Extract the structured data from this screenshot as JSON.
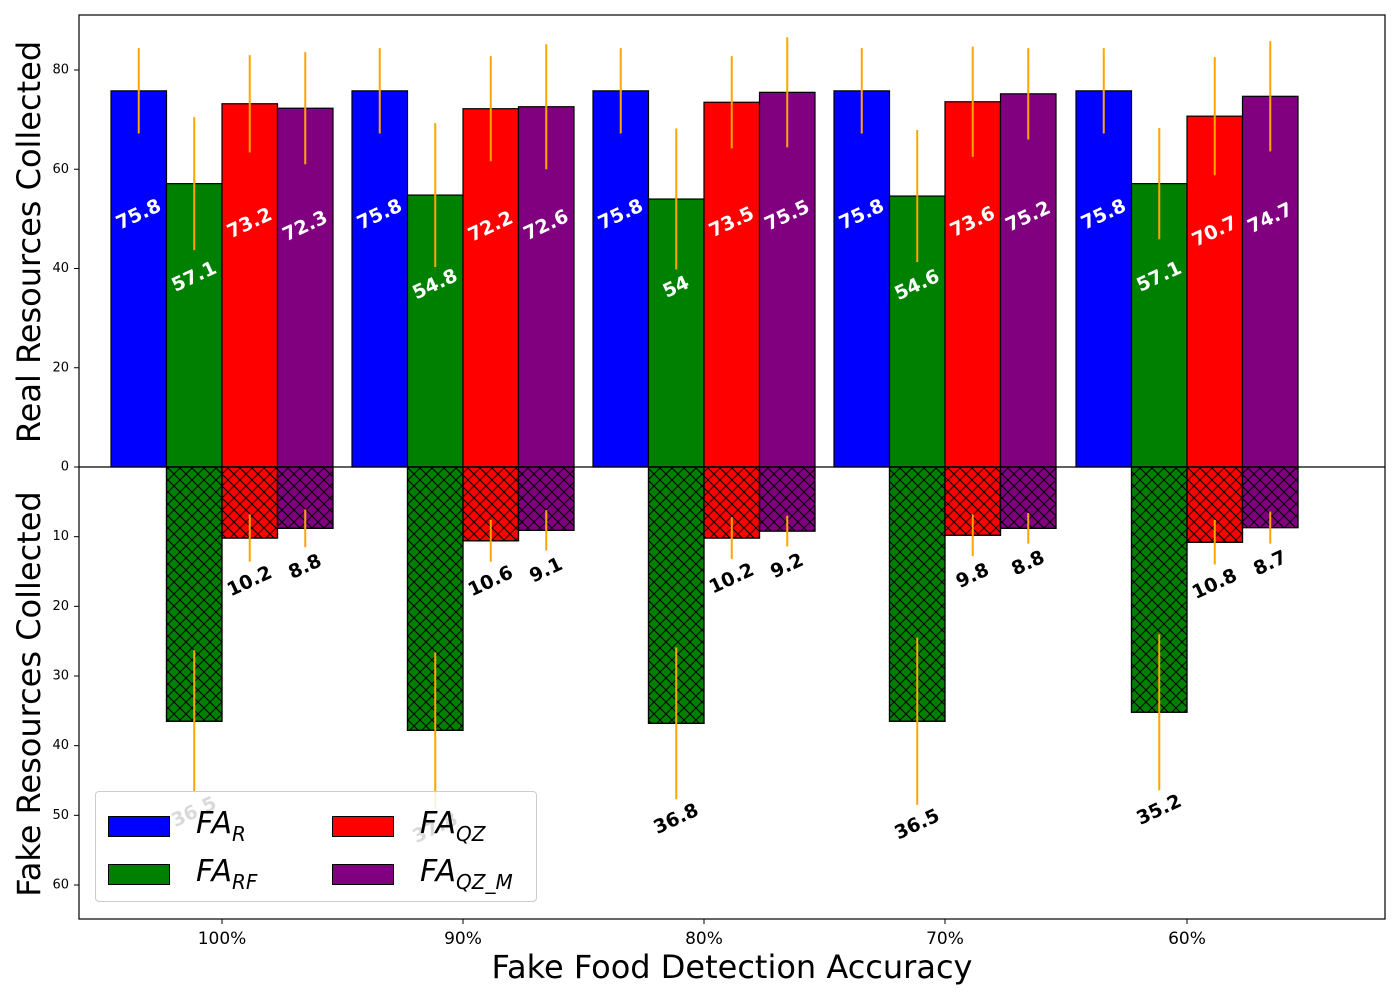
{
  "chart_data": {
    "type": "bar",
    "categories": [
      "100%",
      "90%",
      "80%",
      "70%",
      "60%"
    ],
    "xlabel": "Fake Food Detection Accuracy",
    "ylabel_top": "Real Resources Collected",
    "ylabel_bottom": "Fake Resources Collected",
    "ylim_top": [
      0,
      90
    ],
    "ylim_bottom": [
      0,
      65
    ],
    "yticks_top": [
      0,
      20,
      40,
      60,
      80
    ],
    "yticks_bottom": [
      10,
      20,
      30,
      40,
      50,
      60
    ],
    "legend_position": "lower-left",
    "grid": false,
    "series": [
      {
        "name": "FA",
        "subscript": "R",
        "color": "#0000ff",
        "real": [
          75.8,
          75.8,
          75.8,
          75.8,
          75.8
        ],
        "real_err": [
          8.6,
          8.6,
          8.6,
          8.6,
          8.6
        ],
        "fake": [
          0,
          0,
          0,
          0,
          0
        ],
        "fake_err": [
          0,
          0,
          0,
          0,
          0
        ]
      },
      {
        "name": "FA",
        "subscript": "RF",
        "color": "#008000",
        "real": [
          57.1,
          54.8,
          54,
          54.6,
          57.1
        ],
        "real_err": [
          13.4,
          14.5,
          14.2,
          13.3,
          11.2
        ],
        "fake": [
          36.5,
          37.8,
          36.8,
          36.5,
          35.2
        ],
        "fake_err": [
          10.2,
          11.2,
          10.9,
          12.0,
          11.2
        ]
      },
      {
        "name": "FA",
        "subscript": "QZ",
        "color": "#ff0000",
        "real": [
          73.2,
          72.2,
          73.5,
          73.6,
          70.7
        ],
        "real_err": [
          9.8,
          10.6,
          9.3,
          11.1,
          11.9
        ],
        "fake": [
          10.2,
          10.6,
          10.2,
          9.8,
          10.8
        ],
        "fake_err": [
          3.4,
          3.0,
          3.0,
          3.0,
          3.2
        ]
      },
      {
        "name": "FA",
        "subscript": "QZ_M",
        "color": "#800080",
        "real": [
          72.3,
          72.6,
          75.5,
          75.2,
          74.7
        ],
        "real_err": [
          11.3,
          12.6,
          11.1,
          9.2,
          11.1
        ],
        "fake": [
          8.8,
          9.1,
          9.2,
          8.8,
          8.7
        ],
        "fake_err": [
          2.7,
          2.9,
          2.2,
          2.2,
          2.3
        ]
      }
    ],
    "real_labels": [
      [
        "75.8",
        "75.8",
        "75.8",
        "75.8",
        "75.8"
      ],
      [
        "57.1",
        "54.8",
        "54",
        "54.6",
        "57.1"
      ],
      [
        "73.2",
        "72.2",
        "73.5",
        "73.6",
        "70.7"
      ],
      [
        "72.3",
        "72.6",
        "75.5",
        "75.2",
        "74.7"
      ]
    ],
    "fake_labels": [
      [
        "",
        "",
        "",
        "",
        ""
      ],
      [
        "36.5",
        "37.8",
        "36.8",
        "36.5",
        "35.2"
      ],
      [
        "10.2",
        "10.6",
        "10.2",
        "9.8",
        "10.8"
      ],
      [
        "8.8",
        "9.1",
        "9.2",
        "8.8",
        "8.7"
      ]
    ],
    "errorbar_color": "#ffa500"
  }
}
